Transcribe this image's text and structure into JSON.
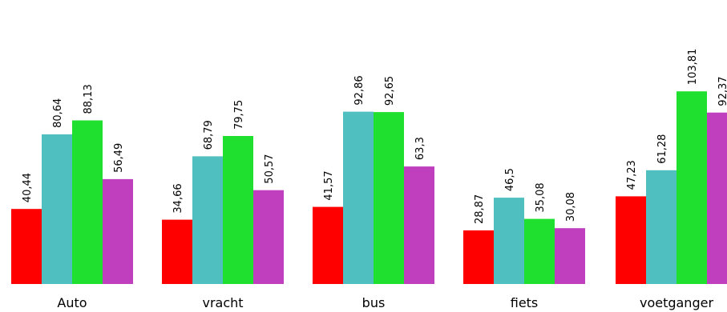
{
  "chart_data": {
    "type": "bar",
    "title": "",
    "xlabel": "",
    "ylabel": "",
    "ylim": [
      0,
      115
    ],
    "grid": false,
    "legend": "none",
    "categories": [
      "Auto",
      "vracht",
      "bus",
      "fiets",
      "voetganger"
    ],
    "series": [
      {
        "values": [
          40.44,
          34.66,
          41.57,
          28.87,
          47.23
        ],
        "labels": [
          "40,44",
          "34,66",
          "41,57",
          "28,87",
          "47,23"
        ],
        "color": "#ff0000"
      },
      {
        "values": [
          80.64,
          68.79,
          92.86,
          46.5,
          61.28
        ],
        "labels": [
          "80,64",
          "68,79",
          "92,86",
          "46,5",
          "61,28"
        ],
        "color": "#4fbfbf"
      },
      {
        "values": [
          88.13,
          79.75,
          92.65,
          35.08,
          103.81
        ],
        "labels": [
          "88,13",
          "79,75",
          "92,65",
          "35,08",
          "103,81"
        ],
        "color": "#1fdf2f"
      },
      {
        "values": [
          56.49,
          50.57,
          63.3,
          30.08,
          92.37
        ],
        "labels": [
          "56,49",
          "50,57",
          "63,3",
          "30,08",
          "92,37"
        ],
        "color": "#bf3fbf"
      }
    ]
  }
}
